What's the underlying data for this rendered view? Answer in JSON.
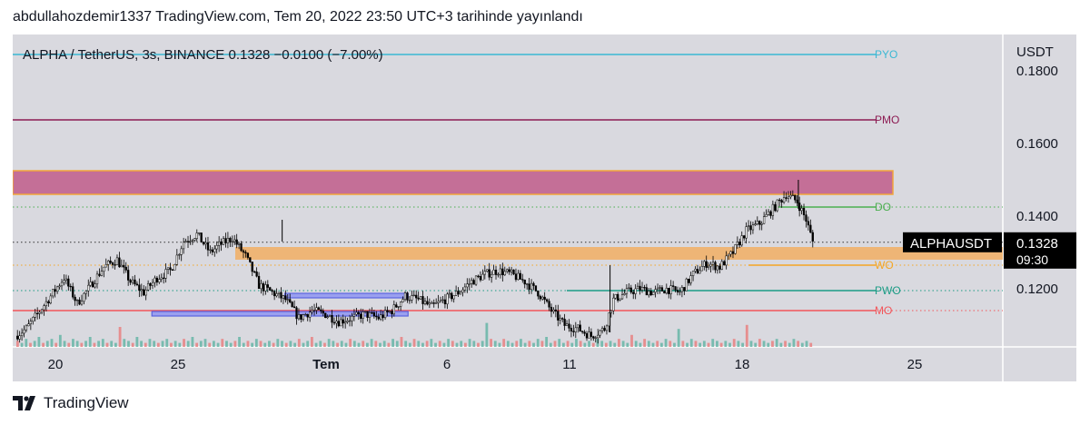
{
  "header": {
    "publish_line": "abdullahozdemir1337 TradingView.com, Tem 20, 2022 23:50 UTC+3 tarihinde yayınlandı"
  },
  "footer": {
    "brand": "TradingView"
  },
  "colors": {
    "background": "#d9d9df",
    "candle": "#000000",
    "volume_up": "#5fb3a3",
    "volume_down": "#e87a7a",
    "zone_pink": "#c46f97",
    "zone_orange": "#f0b06a",
    "rect_blue": "#5a63e0",
    "label_bg_dark": "#000000"
  },
  "chart_data": {
    "type": "candlestick",
    "title": "ALPHA / TetherUS, 3s, BINANCE",
    "legend": {
      "last": "0.1328",
      "change": "−0.0100 (−7.00%)"
    },
    "price_axis": {
      "unit": "USDT",
      "ticks": [
        "0.1800",
        "0.1600",
        "0.1400",
        "0.1200"
      ],
      "ylim": [
        0.104,
        0.19
      ]
    },
    "time_axis": {
      "ticks": [
        "20",
        "25",
        "Tem",
        "6",
        "11",
        "18",
        "25"
      ]
    },
    "current_price_label": {
      "symbol": "ALPHAUSDT",
      "price": "0.1328",
      "countdown": "09:30"
    },
    "price_path": [
      [
        0,
        0.107
      ],
      [
        5,
        0.109
      ],
      [
        10,
        0.113
      ],
      [
        16,
        0.118
      ],
      [
        22,
        0.123
      ],
      [
        28,
        0.116
      ],
      [
        33,
        0.12
      ],
      [
        40,
        0.126
      ],
      [
        46,
        0.128
      ],
      [
        52,
        0.122
      ],
      [
        58,
        0.119
      ],
      [
        64,
        0.123
      ],
      [
        70,
        0.125
      ],
      [
        76,
        0.133
      ],
      [
        82,
        0.135
      ],
      [
        88,
        0.13
      ],
      [
        92,
        0.132
      ],
      [
        98,
        0.134
      ],
      [
        104,
        0.129
      ],
      [
        110,
        0.121
      ],
      [
        116,
        0.119
      ],
      [
        122,
        0.117
      ],
      [
        128,
        0.112
      ],
      [
        134,
        0.114
      ],
      [
        140,
        0.113
      ],
      [
        146,
        0.111
      ],
      [
        152,
        0.112
      ],
      [
        158,
        0.113
      ],
      [
        164,
        0.112
      ],
      [
        170,
        0.114
      ],
      [
        176,
        0.118
      ],
      [
        182,
        0.117
      ],
      [
        188,
        0.115
      ],
      [
        194,
        0.117
      ],
      [
        200,
        0.119
      ],
      [
        206,
        0.122
      ],
      [
        212,
        0.124
      ],
      [
        218,
        0.125
      ],
      [
        224,
        0.124
      ],
      [
        230,
        0.122
      ],
      [
        236,
        0.119
      ],
      [
        242,
        0.114
      ],
      [
        248,
        0.11
      ],
      [
        254,
        0.109
      ],
      [
        260,
        0.107
      ],
      [
        266,
        0.109
      ],
      [
        270,
        0.117
      ],
      [
        276,
        0.119
      ],
      [
        282,
        0.12
      ],
      [
        288,
        0.119
      ],
      [
        294,
        0.12
      ],
      [
        300,
        0.119
      ],
      [
        306,
        0.124
      ],
      [
        312,
        0.127
      ],
      [
        318,
        0.126
      ],
      [
        324,
        0.13
      ],
      [
        330,
        0.136
      ],
      [
        336,
        0.138
      ],
      [
        342,
        0.142
      ],
      [
        348,
        0.146
      ],
      [
        353,
        0.144
      ],
      [
        357,
        0.139
      ],
      [
        360,
        0.133
      ]
    ],
    "volumes": [
      3,
      2,
      4,
      2,
      3,
      5,
      2,
      3,
      4,
      2,
      6,
      3,
      2,
      4,
      3,
      2,
      3,
      5,
      2,
      3,
      4,
      2,
      3,
      2,
      10,
      4,
      3,
      2,
      5,
      3,
      2,
      4,
      3,
      2,
      3,
      4,
      2,
      3,
      2,
      4,
      3,
      5,
      2,
      3,
      4,
      2,
      3,
      2,
      4,
      3,
      2,
      3,
      5,
      2,
      3,
      2,
      4,
      3,
      2,
      3,
      2,
      4,
      3,
      2,
      3,
      2,
      4,
      2,
      3,
      5,
      2,
      3,
      2,
      4,
      3,
      2,
      3,
      2,
      4,
      3,
      2,
      3,
      2,
      4,
      3,
      2,
      3,
      2,
      4,
      3,
      5,
      3,
      2,
      4,
      3,
      2,
      3,
      4,
      2,
      3,
      2,
      4,
      3,
      2,
      3,
      2,
      4,
      3,
      2,
      3,
      12,
      4,
      3,
      2,
      4,
      3,
      2,
      3,
      4,
      2,
      3,
      2,
      4,
      3,
      5,
      2,
      3,
      4,
      2,
      3,
      2,
      4,
      3,
      2,
      3,
      2,
      4,
      3,
      2,
      3,
      2,
      4,
      3,
      2,
      6,
      3,
      2,
      4,
      3,
      2,
      3,
      2,
      4,
      3,
      2,
      9,
      3,
      2,
      4,
      3,
      2,
      3,
      2,
      4,
      3,
      2,
      3,
      2,
      4,
      3,
      2,
      11,
      3,
      2,
      4,
      3,
      2,
      3,
      4,
      2,
      3,
      2,
      4,
      3,
      2,
      3,
      2
    ],
    "zones": [
      {
        "name": "supply-zone",
        "from": 0.146,
        "to": 0.1525
      },
      {
        "name": "support-zone",
        "from": 0.128,
        "to": 0.1315
      }
    ],
    "blue_boxes": [
      {
        "name": "range-top-box",
        "price": 0.118,
        "t_from": 122,
        "t_to": 176
      },
      {
        "name": "range-bottom-box",
        "price": 0.113,
        "t_from": 62,
        "t_to": 176
      }
    ],
    "levels": [
      {
        "label": "PYO",
        "price": 0.1845,
        "color": "#3bb8d4",
        "style": "solid"
      },
      {
        "label": "PMO",
        "price": 0.1665,
        "color": "#8c1a52",
        "style": "solid"
      },
      {
        "label": "DO",
        "price": 0.1425,
        "color": "#4caf50",
        "style": "solid"
      },
      {
        "label": "WO",
        "price": 0.1265,
        "color": "#f5a623",
        "style": "solid"
      },
      {
        "label": "PWO",
        "price": 0.1195,
        "color": "#1b9c85",
        "style": "solid"
      },
      {
        "label": "MO",
        "price": 0.114,
        "color": "#f2555a",
        "style": "solid"
      }
    ],
    "guide_lines": [
      {
        "price": 0.1425,
        "color": "#4caf50",
        "style": "dotted"
      },
      {
        "price": 0.1328,
        "color": "#333333",
        "style": "dotted"
      },
      {
        "price": 0.1265,
        "color": "#f5a623",
        "style": "dotted"
      },
      {
        "price": 0.1195,
        "color": "#1b9c85",
        "style": "dotted"
      },
      {
        "price": 0.114,
        "color": "#f2555a",
        "style": "dotted"
      }
    ]
  }
}
